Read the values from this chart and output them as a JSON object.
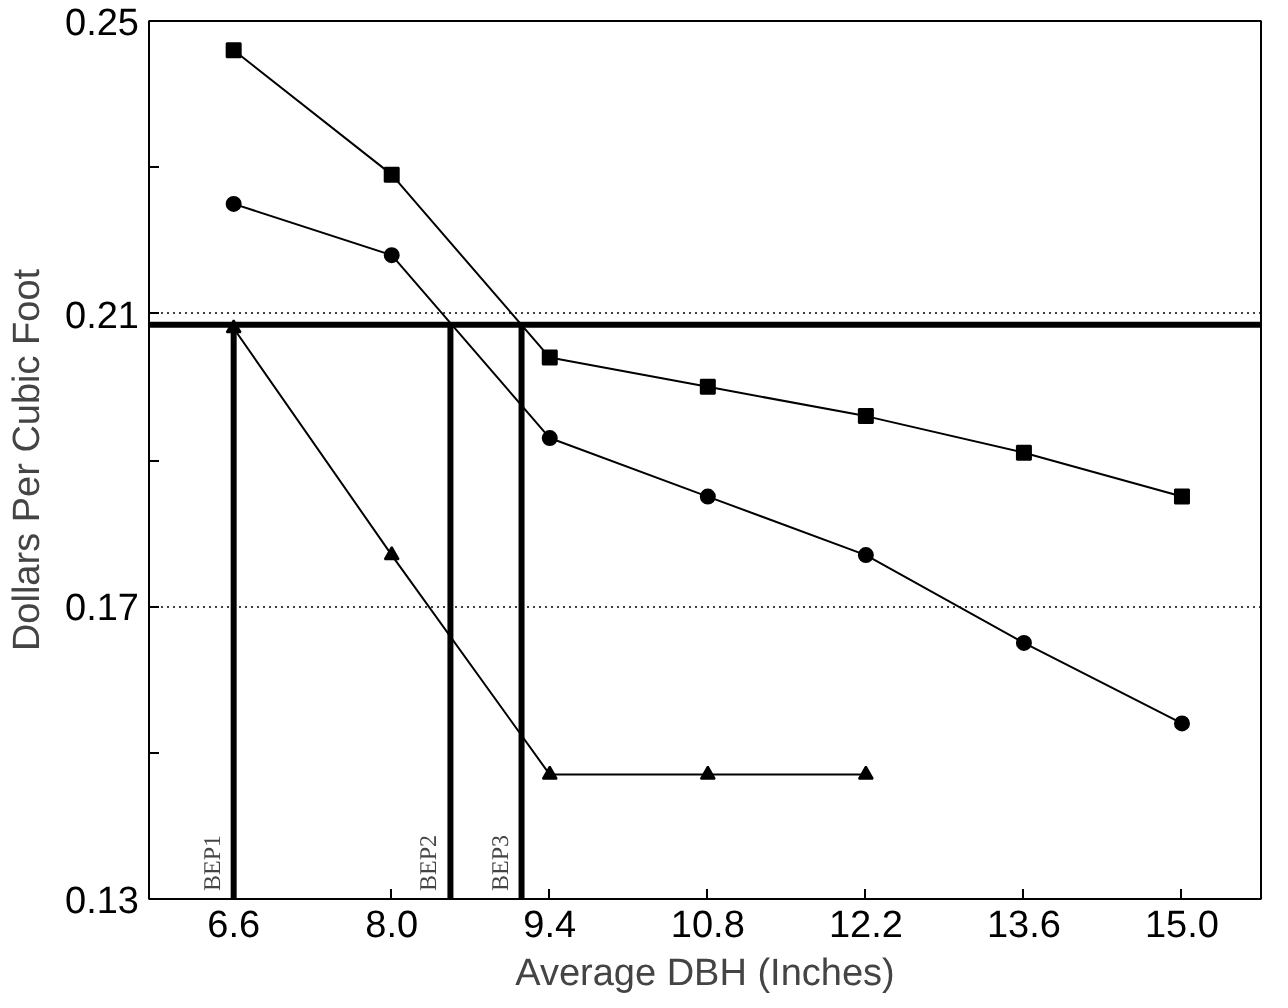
{
  "chart_data": {
    "type": "line",
    "xlabel": "Average DBH (Inches)",
    "ylabel": "Dollars Per Cubic Foot",
    "x": [
      6.6,
      8.0,
      9.4,
      10.8,
      12.2,
      13.6,
      15.0
    ],
    "xlim": [
      5.85,
      15.7
    ],
    "xticks": [
      6.6,
      {
        "value": 8,
        "label": "8.0"
      },
      9.4,
      10.8,
      12.2,
      13.6,
      {
        "value": 15,
        "label": "15.0"
      }
    ],
    "ylim": [
      0.13,
      0.25
    ],
    "yticks": [
      0.13,
      {
        "value": 0.15,
        "label": null
      },
      0.17,
      {
        "value": 0.19,
        "label": null
      },
      0.21,
      {
        "value": 0.23,
        "label": null
      },
      0.25
    ],
    "grid": "y",
    "line_style": "solid",
    "series": [
      {
        "color": "#000000",
        "marker": "square",
        "values": [
          0.246,
          0.229,
          0.204,
          0.2,
          0.196,
          0.191,
          0.185
        ]
      },
      {
        "color": "#000000",
        "marker": "circle",
        "values": [
          0.225,
          0.218,
          0.193,
          0.185,
          0.177,
          0.165,
          0.154
        ]
      },
      {
        "color": "#000000",
        "marker": "triangle",
        "values": [
          0.208,
          0.177,
          0.147,
          0.147,
          0.147,
          null,
          null
        ]
      }
    ],
    "ref_lines": [
      {
        "axis": "y",
        "value": 0.2085,
        "label": null
      },
      {
        "axis": "x",
        "value": 6.6,
        "label": "BEP1"
      },
      {
        "axis": "x",
        "value": 8.52,
        "label": "BEP2"
      },
      {
        "axis": "x",
        "value": 9.15,
        "label": "BEP3"
      }
    ]
  }
}
